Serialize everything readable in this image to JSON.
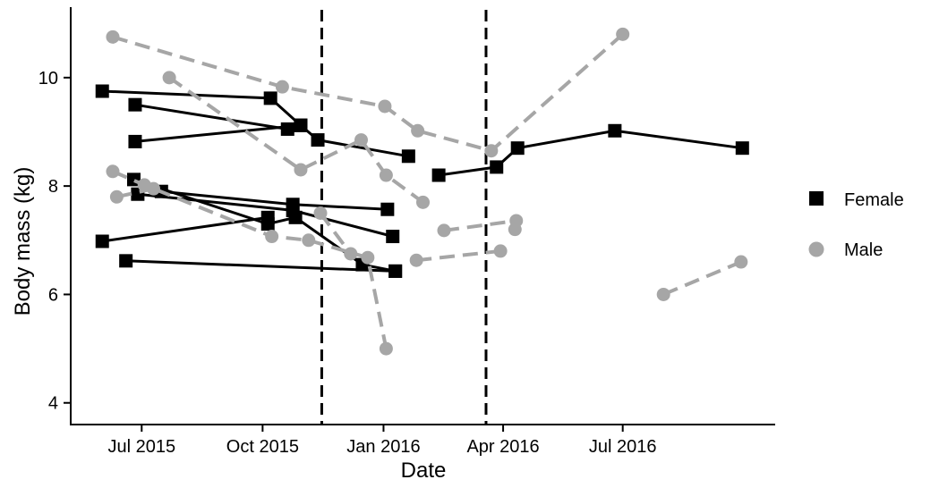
{
  "chart_data": {
    "type": "line",
    "title": "",
    "xlabel": "Date",
    "ylabel": "Body mass (kg)",
    "x_range": [
      "2015-05-08",
      "2016-10-25"
    ],
    "ylim": [
      3.6,
      11.3
    ],
    "grid": false,
    "x_ticks": [
      {
        "date": "2015-07-01",
        "label": "Jul 2015"
      },
      {
        "date": "2015-10-01",
        "label": "Oct 2015"
      },
      {
        "date": "2016-01-01",
        "label": "Jan 2016"
      },
      {
        "date": "2016-04-01",
        "label": "Apr 2016"
      },
      {
        "date": "2016-07-01",
        "label": "Jul 2016"
      }
    ],
    "y_ticks": [
      4,
      6,
      8,
      10
    ],
    "vlines": [
      "2015-11-15",
      "2016-03-19"
    ],
    "legend_position": "right",
    "legend": [
      {
        "label": "Female",
        "marker": "square",
        "color": "#000000"
      },
      {
        "label": "Male",
        "marker": "circle",
        "color": "#a6a6a6"
      }
    ],
    "colors": {
      "female": "#000000",
      "male": "#a6a6a6"
    },
    "series": [
      {
        "sex": "Female",
        "points": [
          [
            "2015-06-01",
            9.75
          ],
          [
            "2015-10-07",
            9.62
          ],
          [
            "2015-10-30",
            9.12
          ],
          [
            "2015-11-12",
            8.85
          ],
          [
            "2016-01-20",
            8.55
          ]
        ]
      },
      {
        "sex": "Female",
        "points": [
          [
            "2015-06-26",
            9.5
          ],
          [
            "2015-10-20",
            9.05
          ],
          [
            "2015-10-30",
            9.12
          ]
        ]
      },
      {
        "sex": "Female",
        "points": [
          [
            "2015-06-26",
            8.82
          ],
          [
            "2015-10-30",
            9.12
          ]
        ]
      },
      {
        "sex": "Female",
        "points": [
          [
            "2015-06-25",
            8.12
          ],
          [
            "2015-10-05",
            7.3
          ],
          [
            "2015-10-26",
            7.42
          ],
          [
            "2015-12-16",
            6.55
          ],
          [
            "2016-01-10",
            6.43
          ]
        ]
      },
      {
        "sex": "Female",
        "points": [
          [
            "2015-06-28",
            7.85
          ],
          [
            "2015-10-24",
            7.55
          ],
          [
            "2016-01-08",
            7.07
          ]
        ]
      },
      {
        "sex": "Female",
        "points": [
          [
            "2015-07-16",
            7.9
          ],
          [
            "2015-10-24",
            7.66
          ],
          [
            "2016-01-04",
            7.57
          ]
        ]
      },
      {
        "sex": "Female",
        "points": [
          [
            "2015-06-01",
            6.98
          ],
          [
            "2015-10-05",
            7.42
          ]
        ]
      },
      {
        "sex": "Female",
        "points": [
          [
            "2015-06-19",
            6.62
          ],
          [
            "2016-01-10",
            6.43
          ]
        ]
      },
      {
        "sex": "Female",
        "points": [
          [
            "2016-02-12",
            8.2
          ],
          [
            "2016-03-27",
            8.35
          ],
          [
            "2016-04-12",
            8.7
          ],
          [
            "2016-06-25",
            9.02
          ],
          [
            "2016-09-30",
            8.7
          ]
        ]
      },
      {
        "sex": "Male",
        "points": [
          [
            "2015-06-09",
            10.75
          ],
          [
            "2015-10-16",
            9.83
          ],
          [
            "2016-01-02",
            9.47
          ],
          [
            "2016-01-27",
            9.02
          ],
          [
            "2016-03-23",
            8.65
          ],
          [
            "2016-07-01",
            10.8
          ]
        ]
      },
      {
        "sex": "Male",
        "points": [
          [
            "2015-07-22",
            10.0
          ],
          [
            "2015-10-30",
            8.3
          ],
          [
            "2015-12-15",
            8.85
          ],
          [
            "2016-01-03",
            8.2
          ],
          [
            "2016-01-31",
            7.7
          ]
        ]
      },
      {
        "sex": "Male",
        "points": [
          [
            "2015-06-09",
            8.27
          ],
          [
            "2015-07-03",
            8.02
          ],
          [
            "2015-10-08",
            7.07
          ],
          [
            "2015-11-05",
            7.0
          ],
          [
            "2015-12-20",
            6.68
          ],
          [
            "2016-01-03",
            5.0
          ]
        ]
      },
      {
        "sex": "Male",
        "points": [
          [
            "2015-06-12",
            7.8
          ],
          [
            "2015-07-10",
            7.95
          ]
        ]
      },
      {
        "sex": "Male",
        "points": [
          [
            "2015-11-14",
            7.5
          ],
          [
            "2015-12-07",
            6.75
          ]
        ]
      },
      {
        "sex": "Male",
        "points": [
          [
            "2016-01-26",
            6.63
          ],
          [
            "2016-03-30",
            6.8
          ]
        ]
      },
      {
        "sex": "Male",
        "points": [
          [
            "2016-02-16",
            7.18
          ],
          [
            "2016-04-11",
            7.36
          ],
          [
            "2016-04-10",
            7.2
          ]
        ]
      },
      {
        "sex": "Male",
        "points": [
          [
            "2016-08-01",
            6.0
          ],
          [
            "2016-09-29",
            6.6
          ]
        ]
      }
    ]
  }
}
